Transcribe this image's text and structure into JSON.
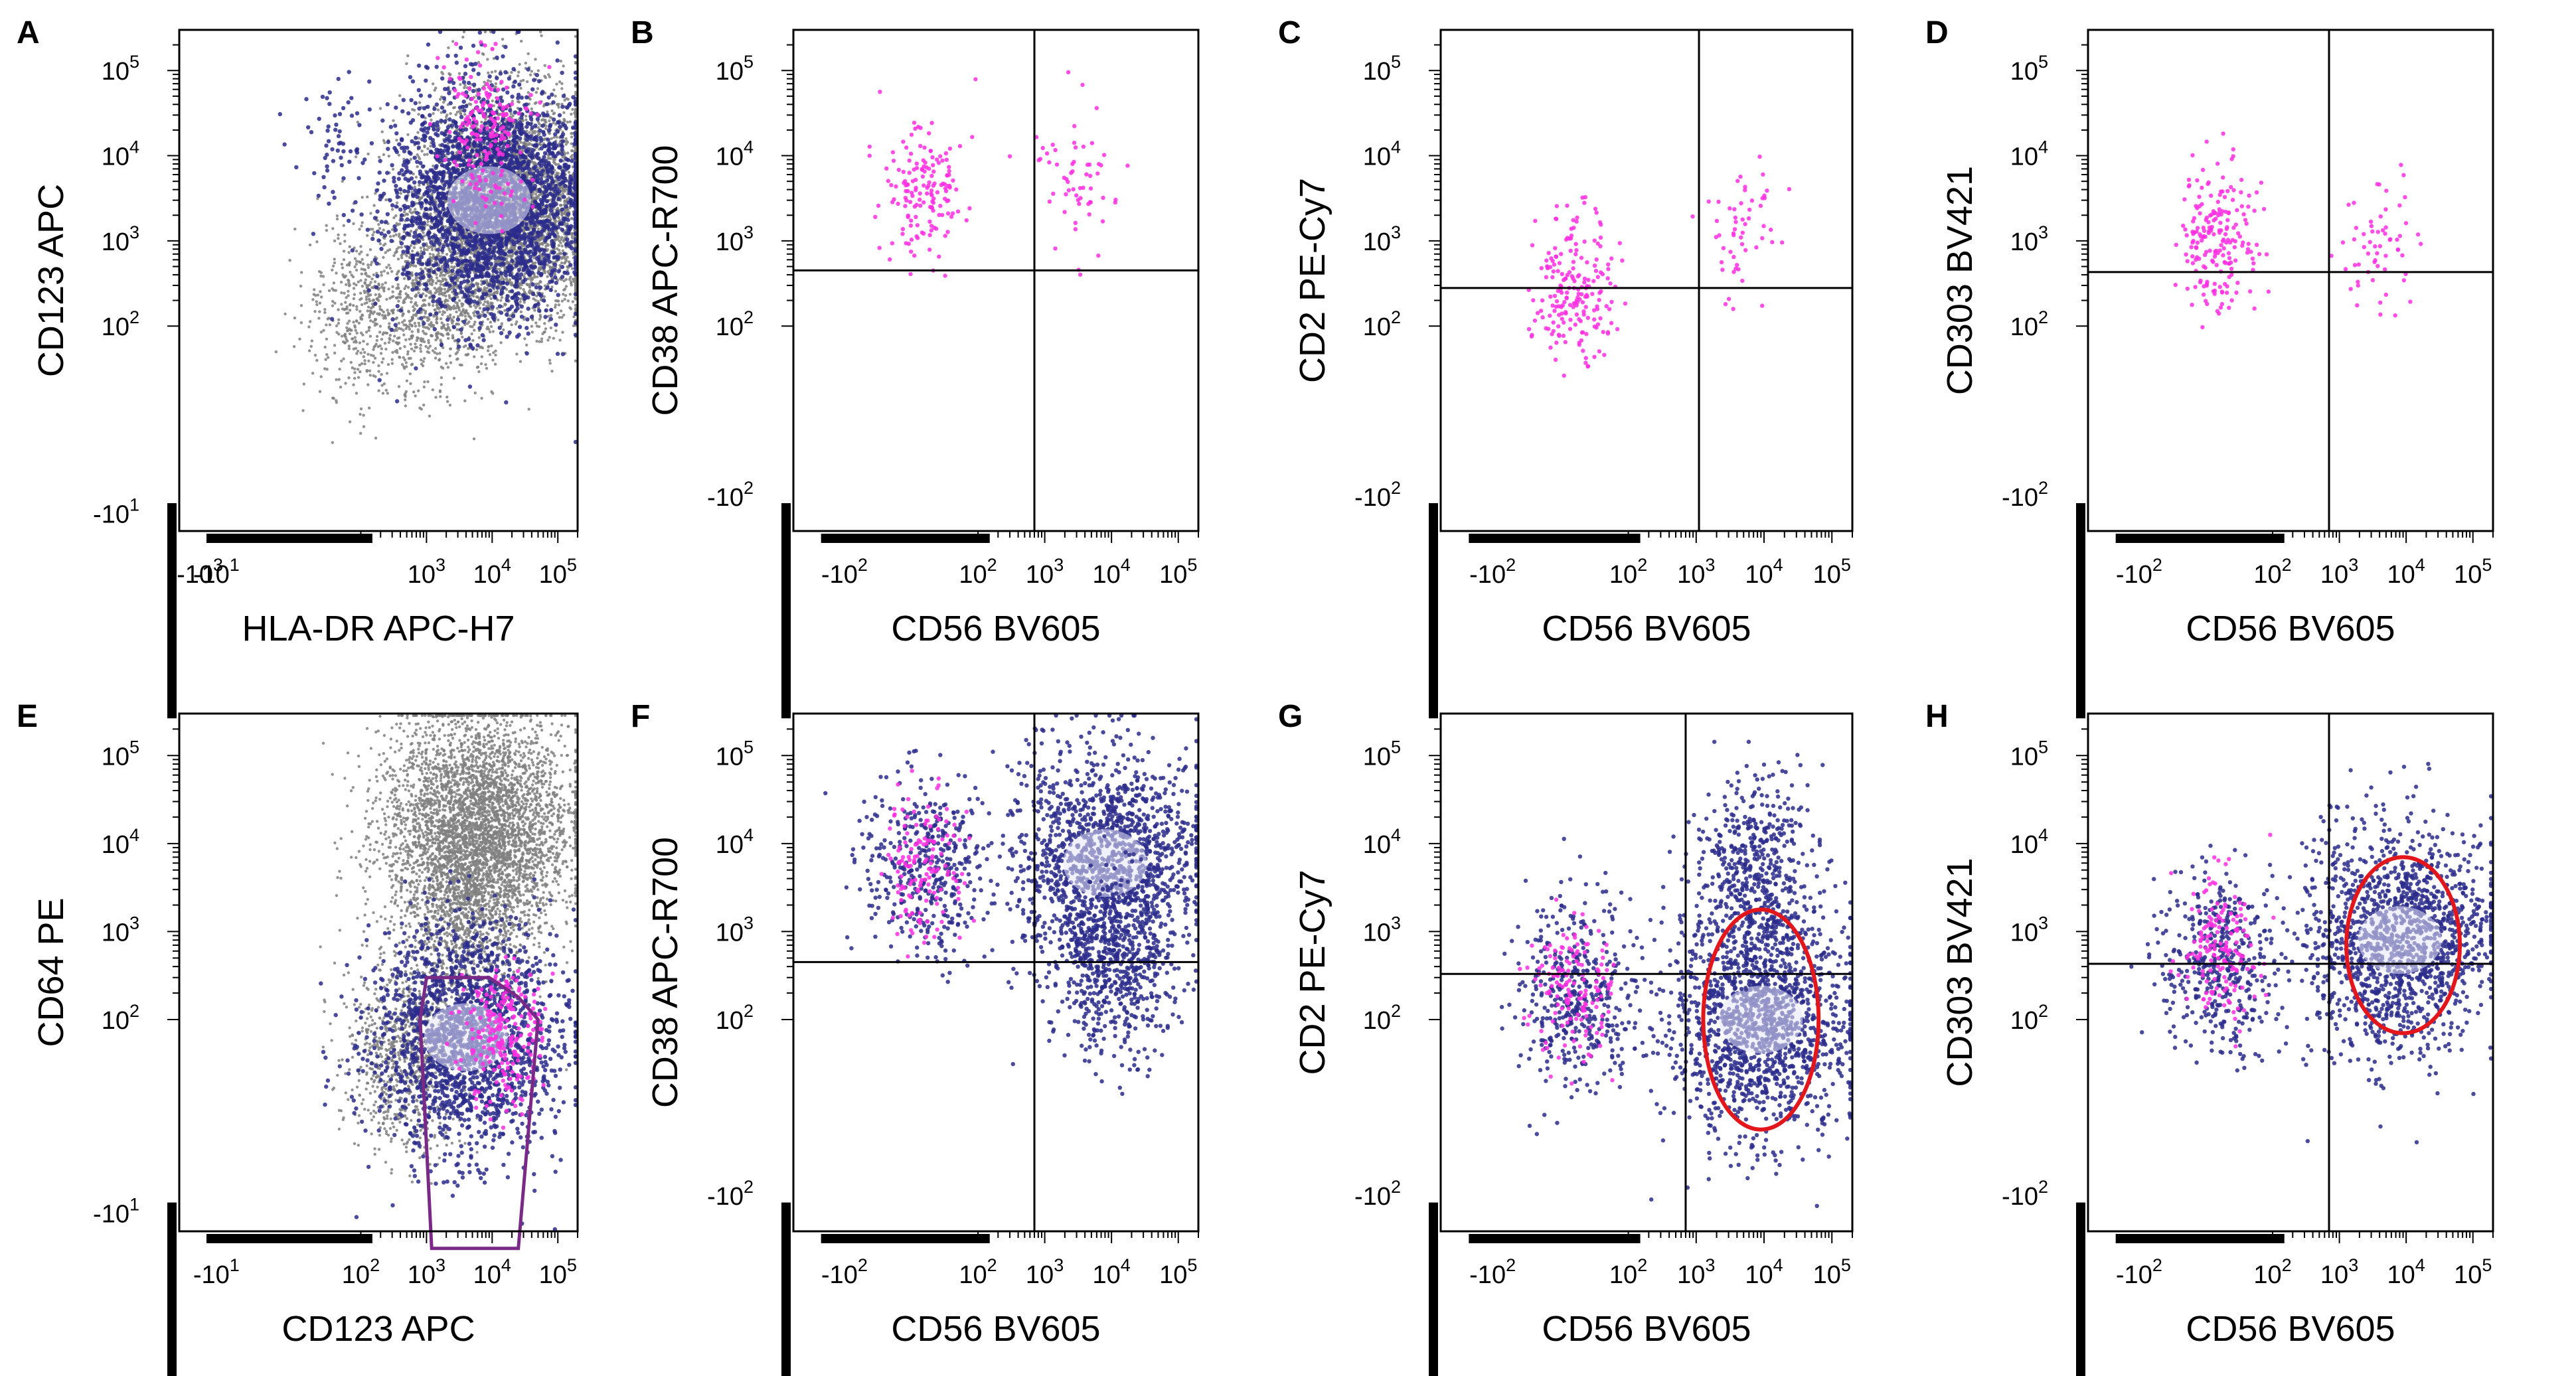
{
  "colors": {
    "gray_population": "#808080",
    "blue_population": "#2b2b8c",
    "magenta_population": "#ff2fe0",
    "gate_polygon": "#7a2a86",
    "circle_gate": "#e3161b"
  },
  "chart_data": [
    {
      "type": "scatter",
      "panel": "A",
      "xlabel": "HLA-DR APC-H7",
      "ylabel": "CD123 APC",
      "x_ticks": [
        "-10^3",
        "-10^1",
        "10^3",
        "10^4",
        "10^5"
      ],
      "y_ticks": [
        "10^5",
        "10^4",
        "10^3",
        "10^2",
        "-10^1"
      ],
      "series": [
        {
          "color": "gray",
          "clusters": [
            {
              "x": 20000,
              "y": 2500,
              "n": 4200
            },
            {
              "x": 120,
              "y": 150,
              "n": 500
            },
            {
              "x": 1500,
              "y": 300,
              "n": 900
            }
          ]
        },
        {
          "color": "blue",
          "clusters": [
            {
              "x": 9000,
              "y": 3000,
              "n": 2600
            },
            {
              "x": 80,
              "y": 10000,
              "n": 60
            }
          ]
        },
        {
          "color": "magenta",
          "clusters": [
            {
              "x": 8000,
              "y": 20000,
              "n": 180
            }
          ]
        }
      ]
    },
    {
      "type": "scatter",
      "panel": "B",
      "xlabel": "CD56 BV605",
      "ylabel": "CD38 APC-R700",
      "x_ticks": [
        "-10^2",
        "10^2",
        "10^3",
        "10^4",
        "10^5"
      ],
      "y_ticks": [
        "10^5",
        "10^4",
        "10^3",
        "10^2",
        "-10^2"
      ],
      "quadrant": {
        "x": 700,
        "y": 450
      },
      "series": [
        {
          "color": "magenta",
          "clusters": [
            {
              "x": 60,
              "y": 4000,
              "n": 160
            },
            {
              "x": 3000,
              "y": 6000,
              "n": 60
            }
          ]
        }
      ]
    },
    {
      "type": "scatter",
      "panel": "C",
      "xlabel": "CD56 BV605",
      "ylabel": "CD2 PE-Cy7",
      "x_ticks": [
        "-10^2",
        "10^2",
        "10^3",
        "10^4",
        "10^5"
      ],
      "y_ticks": [
        "10^5",
        "10^4",
        "10^3",
        "10^2",
        "-10^2"
      ],
      "quadrant": {
        "x": 1100,
        "y": 280
      },
      "series": [
        {
          "color": "magenta",
          "clusters": [
            {
              "x": 60,
              "y": 300,
              "n": 200
            },
            {
              "x": 5000,
              "y": 1000,
              "n": 55
            }
          ]
        }
      ]
    },
    {
      "type": "scatter",
      "panel": "D",
      "xlabel": "CD56 BV605",
      "ylabel": "CD303 BV421",
      "x_ticks": [
        "-10^2",
        "10^2",
        "10^3",
        "10^4",
        "10^5"
      ],
      "y_ticks": [
        "10^5",
        "10^4",
        "10^3",
        "10^2",
        "-10^2"
      ],
      "quadrant": {
        "x": 700,
        "y": 430
      },
      "series": [
        {
          "color": "magenta",
          "clusters": [
            {
              "x": 60,
              "y": 1000,
              "n": 200
            },
            {
              "x": 4000,
              "y": 900,
              "n": 60
            }
          ]
        }
      ]
    },
    {
      "type": "scatter",
      "panel": "E",
      "xlabel": "CD123 APC",
      "ylabel": "CD64 PE",
      "x_ticks": [
        "-10^1",
        "10^2",
        "10^3",
        "10^4",
        "10^5"
      ],
      "y_ticks": [
        "10^5",
        "10^4",
        "10^3",
        "10^2",
        "-10^1"
      ],
      "gate": [
        [
          1000,
          300
        ],
        [
          9000,
          300
        ],
        [
          25000,
          180
        ],
        [
          50000,
          100
        ],
        [
          25000,
          -30
        ],
        [
          1200,
          -30
        ],
        [
          800,
          100
        ]
      ],
      "series": [
        {
          "color": "gray",
          "clusters": [
            {
              "x": 6000,
              "y": 15000,
              "n": 4200
            },
            {
              "x": 500,
              "y": 80,
              "n": 900
            },
            {
              "x": 4000,
              "y": 1500,
              "n": 700
            }
          ]
        },
        {
          "color": "blue",
          "clusters": [
            {
              "x": 4000,
              "y": 90,
              "n": 1800
            }
          ]
        },
        {
          "color": "magenta",
          "clusters": [
            {
              "x": 16000,
              "y": 90,
              "n": 220
            }
          ]
        }
      ]
    },
    {
      "type": "scatter",
      "panel": "F",
      "xlabel": "CD56 BV605",
      "ylabel": "CD38 APC-R700",
      "x_ticks": [
        "-10^2",
        "10^2",
        "10^3",
        "10^4",
        "10^5"
      ],
      "y_ticks": [
        "10^5",
        "10^4",
        "10^3",
        "10^2",
        "-10^2"
      ],
      "quadrant": {
        "x": 700,
        "y": 450
      },
      "series": [
        {
          "color": "blue",
          "clusters": [
            {
              "x": 60,
              "y": 6000,
              "n": 420
            },
            {
              "x": 8000,
              "y": 6000,
              "n": 1500
            },
            {
              "x": 12000,
              "y": 400,
              "n": 500
            }
          ]
        },
        {
          "color": "magenta",
          "clusters": [
            {
              "x": 60,
              "y": 5000,
              "n": 140
            }
          ]
        }
      ]
    },
    {
      "type": "scatter",
      "panel": "G",
      "xlabel": "CD56 BV605",
      "ylabel": "CD2 PE-Cy7",
      "x_ticks": [
        "-10^2",
        "10^2",
        "10^3",
        "10^4",
        "10^5"
      ],
      "y_ticks": [
        "10^5",
        "10^4",
        "10^3",
        "10^2",
        "-10^2"
      ],
      "quadrant": {
        "x": 700,
        "y": 330
      },
      "circle_gate": {
        "x": 9000,
        "y": 100,
        "rx_decades": 0.85,
        "ry_decades": 1.25
      },
      "series": [
        {
          "color": "blue",
          "clusters": [
            {
              "x": 60,
              "y": 200,
              "n": 420
            },
            {
              "x": 9000,
              "y": 100,
              "n": 1500
            },
            {
              "x": 7000,
              "y": 5000,
              "n": 500
            }
          ]
        },
        {
          "color": "magenta",
          "clusters": [
            {
              "x": 60,
              "y": 200,
              "n": 150
            }
          ]
        }
      ]
    },
    {
      "type": "scatter",
      "panel": "H",
      "xlabel": "CD56 BV605",
      "ylabel": "CD303 BV421",
      "x_ticks": [
        "-10^2",
        "10^2",
        "10^3",
        "10^4",
        "10^5"
      ],
      "y_ticks": [
        "10^5",
        "10^4",
        "10^3",
        "10^2",
        "-10^2"
      ],
      "quadrant": {
        "x": 700,
        "y": 430
      },
      "circle_gate": {
        "x": 9000,
        "y": 700,
        "rx_decades": 0.85,
        "ry_decades": 1.0
      },
      "series": [
        {
          "color": "blue",
          "clusters": [
            {
              "x": 60,
              "y": 500,
              "n": 420
            },
            {
              "x": 8000,
              "y": 800,
              "n": 1500
            }
          ]
        },
        {
          "color": "magenta",
          "clusters": [
            {
              "x": 60,
              "y": 700,
              "n": 160
            }
          ]
        }
      ]
    }
  ]
}
